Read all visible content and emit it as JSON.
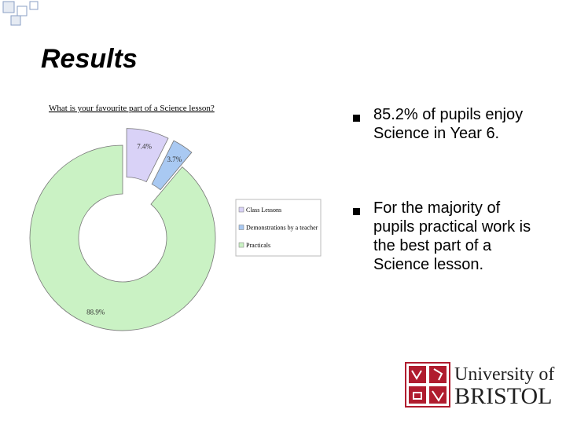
{
  "title": "Results",
  "chart_data": {
    "type": "pie",
    "title": "What is your favourite part of a Science lesson?",
    "categories": [
      "Class Lessons",
      "Demonstrations by a teacher",
      "Practicals"
    ],
    "values": [
      7.4,
      3.7,
      88.9
    ],
    "value_labels": [
      "7.4%",
      "3.7%",
      "88.9%"
    ],
    "colors": [
      "#d9d2f7",
      "#a9c9f2",
      "#caf2c4"
    ],
    "legend": "right"
  },
  "bullets": [
    "85.2% of pupils enjoy Science in Year 6.",
    "For the majority of pupils practical work is the best part of a Science lesson."
  ],
  "logo": {
    "line1": "University of",
    "line2": "BRISTOL"
  }
}
